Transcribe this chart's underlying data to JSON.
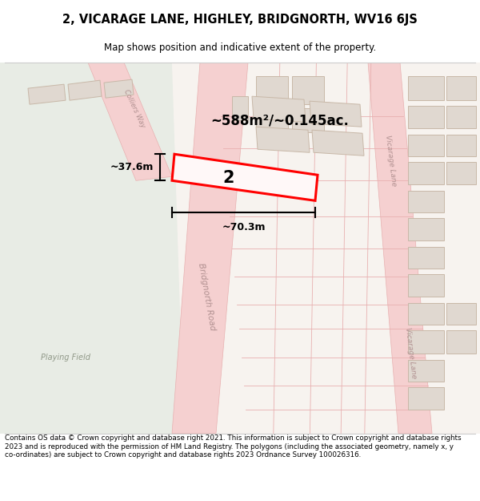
{
  "title": "2, VICARAGE LANE, HIGHLEY, BRIDGNORTH, WV16 6JS",
  "subtitle": "Map shows position and indicative extent of the property.",
  "footer": "Contains OS data © Crown copyright and database right 2021. This information is subject to Crown copyright and database rights 2023 and is reproduced with the permission of HM Land Registry. The polygons (including the associated geometry, namely x, y co-ordinates) are subject to Crown copyright and database rights 2023 Ordnance Survey 100026316.",
  "area_label": "~588m²/~0.145ac.",
  "width_label": "~70.3m",
  "height_label": "~37.6m",
  "property_number": "2",
  "map_bg": "#f7f3ef",
  "road_fill": "#f5d0d0",
  "road_edge": "#e8a0a0",
  "road_edge_thin": "#e8b0b0",
  "building_fill": "#e0d8d0",
  "building_edge": "#c8b8a8",
  "highlight_color": "#ff0000",
  "text_color": "#000000",
  "road_label_color": "#b09090",
  "green_fill": "#e8ece5",
  "green_edge": "#d0d8c8",
  "dim_color": "#000000",
  "white_fill": "#ffffff"
}
